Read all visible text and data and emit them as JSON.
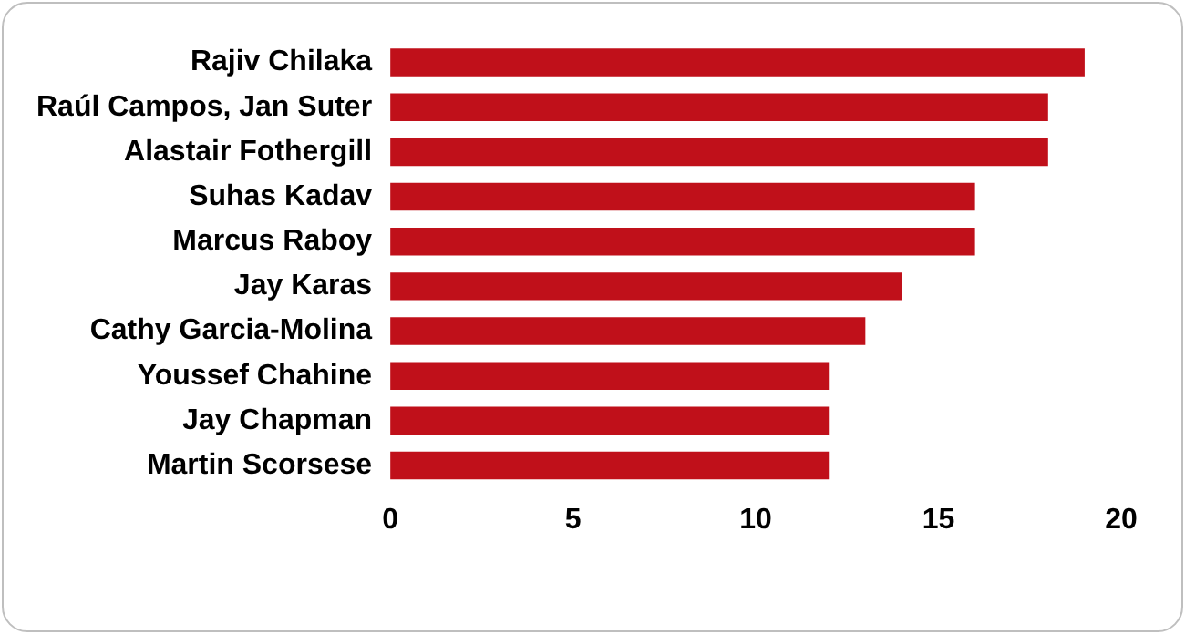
{
  "chart_data": {
    "type": "bar",
    "orientation": "horizontal",
    "categories": [
      "Rajiv Chilaka",
      "Raúl Campos, Jan Suter",
      "Alastair Fothergill",
      "Suhas Kadav",
      "Marcus Raboy",
      "Jay Karas",
      "Cathy Garcia-Molina",
      "Youssef Chahine",
      "Jay Chapman",
      "Martin Scorsese"
    ],
    "values": [
      19,
      18,
      18,
      16,
      16,
      14,
      13,
      12,
      12,
      12
    ],
    "color": "#c0101a",
    "xlim": [
      0,
      20
    ],
    "xticks": [
      0,
      5,
      10,
      15,
      20
    ],
    "grid": false,
    "legend": false
  }
}
